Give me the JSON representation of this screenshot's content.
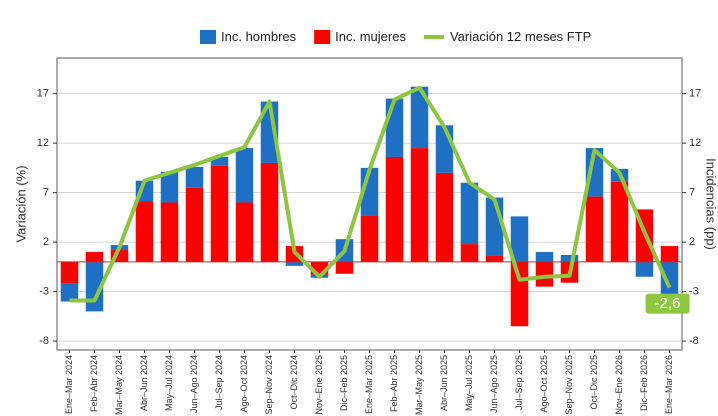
{
  "chart_data": {
    "type": "bar",
    "categories": [
      "Ene–Mar 2024",
      "Feb–Abr 2024",
      "Mar–May 2024",
      "Abr–Jun 2024",
      "May–Jul 2024",
      "Jun–Ago 2024",
      "Jul–Sep 2024",
      "Ago–Oct 2024",
      "Sep–Nov 2024",
      "Oct–Dic 2024",
      "Nov–Ene 2025",
      "Dic–Feb 2025",
      "Ene–Mar 2025",
      "Feb–Abr 2025",
      "Mar–May 2025",
      "Abr–Jun 2025",
      "May–Jul 2025",
      "Jun–Ago 2025",
      "Jul–Sep 2025",
      "Ago–Oct 2025",
      "Sep–Nov 2025",
      "Oct–Dic 2025",
      "Nov–Ene 2026",
      "Dic–Feb 2026",
      "Ene–Mar 2026"
    ],
    "series": [
      {
        "name": "Inc. mujeres",
        "color": "#ff0000",
        "type": "bar",
        "values": [
          -2.2,
          1.0,
          1.2,
          6.1,
          6.0,
          7.5,
          9.7,
          6.0,
          10.0,
          1.6,
          -1.3,
          -1.2,
          4.7,
          10.6,
          11.5,
          9.0,
          1.8,
          0.6,
          -6.5,
          -2.5,
          -2.1,
          6.6,
          8.1,
          5.3,
          1.6
        ]
      },
      {
        "name": "Inc. hombres",
        "color": "#1f6fc5",
        "type": "bar",
        "values": [
          -1.8,
          -5.0,
          0.5,
          2.1,
          3.1,
          2.1,
          0.9,
          5.5,
          6.2,
          -0.4,
          -0.3,
          2.3,
          4.8,
          5.9,
          6.2,
          4.8,
          6.2,
          5.9,
          4.6,
          1.0,
          0.7,
          4.9,
          1.3,
          -1.5,
          -4.0
        ]
      },
      {
        "name": "Variación 12 meses FTP",
        "color": "#8dc63f",
        "type": "line",
        "values": [
          -3.9,
          -3.9,
          1.5,
          8.2,
          9.0,
          9.8,
          10.7,
          11.6,
          16.2,
          1.0,
          -1.5,
          1.1,
          9.3,
          16.4,
          17.6,
          13.6,
          8.0,
          6.3,
          -1.8,
          -1.5,
          -1.4,
          11.3,
          9.0,
          3.0,
          -2.6
        ]
      }
    ],
    "ylabel": "Variación (%)",
    "y2label": "Incidencias (pp)",
    "ylim": [
      -8.9,
      20.6
    ],
    "yticks": [
      -8,
      -3,
      2,
      7,
      12,
      17
    ],
    "y2lim": [
      -8.9,
      20.6
    ],
    "y2ticks": [
      -8,
      -3,
      2,
      7,
      12,
      17
    ],
    "annotation": "-2,6",
    "grid": true,
    "legend": "top"
  }
}
